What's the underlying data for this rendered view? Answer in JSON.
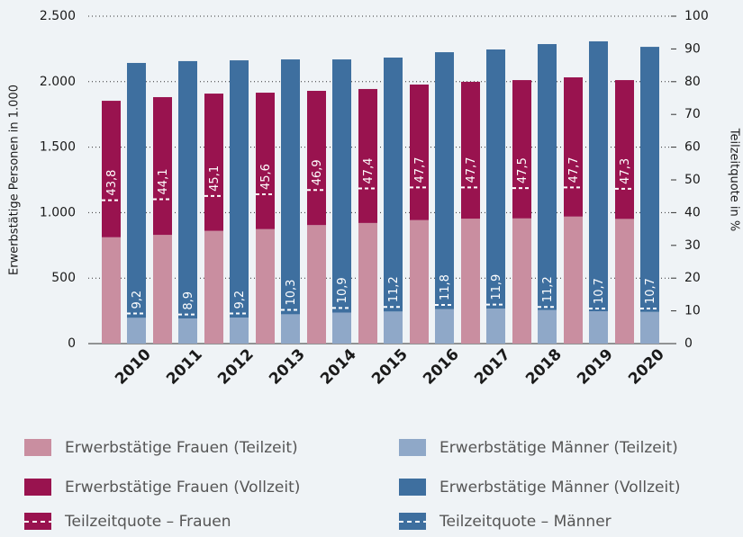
{
  "chart_data": {
    "type": "bar",
    "stacked": true,
    "ylabel": "Erwerbstätige Personen in 1.000",
    "y2label": "Teilzeitquote in %",
    "categories": [
      "2010",
      "2011",
      "2012",
      "2013",
      "2014",
      "2015",
      "2016",
      "2017",
      "2018",
      "2019",
      "2020"
    ],
    "series": [
      {
        "name": "Erwerbstätige Frauen (Teilzeit)",
        "color": "#c98ea0",
        "group": "Frauen",
        "values": [
          812,
          830,
          861,
          874,
          905,
          921,
          943,
          954,
          956,
          970,
          952
        ]
      },
      {
        "name": "Erwerbstätige Frauen (Vollzeit)",
        "color": "#99134f",
        "group": "Frauen",
        "values": [
          1042,
          1052,
          1048,
          1042,
          1025,
          1023,
          1035,
          1045,
          1056,
          1063,
          1060
        ]
      },
      {
        "name": "Erwerbstätige Männer (Teilzeit)",
        "color": "#8fa8c8",
        "group": "Männer",
        "values": [
          197,
          192,
          199,
          224,
          237,
          245,
          263,
          267,
          256,
          247,
          242
        ]
      },
      {
        "name": "Erwerbstätige Männer (Vollzeit)",
        "color": "#3e6f9f",
        "group": "Männer",
        "values": [
          1946,
          1965,
          1964,
          1946,
          1933,
          1939,
          1962,
          1979,
          2031,
          2061,
          2024
        ]
      },
      {
        "name": "Teilzeitquote – Frauen",
        "color": "#99134f",
        "group": "Frauen",
        "axis": "y2",
        "type": "marker",
        "values": [
          43.8,
          44.1,
          45.1,
          45.6,
          46.9,
          47.4,
          47.7,
          47.7,
          47.5,
          47.7,
          47.3
        ],
        "value_labels": [
          "43,8",
          "44,1",
          "45,1",
          "45,6",
          "46,9",
          "47,4",
          "47,7",
          "47,7",
          "47,5",
          "47,7",
          "47,3"
        ]
      },
      {
        "name": "Teilzeitquote – Männer",
        "color": "#3e6f9f",
        "group": "Männer",
        "axis": "y2",
        "type": "marker",
        "values": [
          9.2,
          8.9,
          9.2,
          10.3,
          10.9,
          11.2,
          11.8,
          11.9,
          11.2,
          10.7,
          10.7
        ],
        "value_labels": [
          "9,2",
          "8,9",
          "9,2",
          "10,3",
          "10,9",
          "11,2",
          "11,8",
          "11,9",
          "11,2",
          "10,7",
          "10,7"
        ]
      }
    ],
    "ylim": [
      0,
      2500
    ],
    "yticks": [
      0,
      500,
      {
        "value": 1000,
        "label": "1.000"
      },
      {
        "value": 1500,
        "label": "1.500"
      },
      {
        "value": 2000,
        "label": "2.000"
      },
      {
        "value": 2500,
        "label": "2.500"
      }
    ],
    "y2lim": [
      0,
      100
    ],
    "y2ticks": [
      0,
      10,
      20,
      30,
      40,
      50,
      60,
      70,
      80,
      90,
      100
    ],
    "grid": true,
    "legend": "bottom"
  }
}
